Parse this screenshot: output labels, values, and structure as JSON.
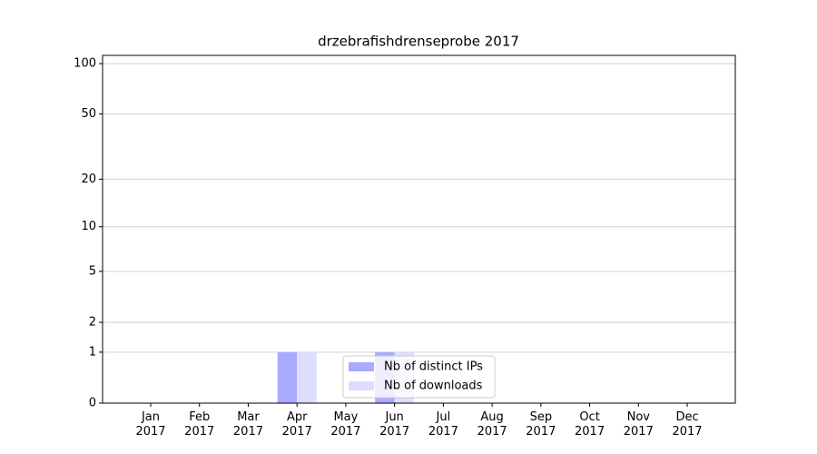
{
  "chart_data": {
    "type": "bar",
    "title": "drzebrafishdrenseprobe 2017",
    "categories": [
      "Jan 2017",
      "Feb 2017",
      "Mar 2017",
      "Apr 2017",
      "May 2017",
      "Jun 2017",
      "Jul 2017",
      "Aug 2017",
      "Sep 2017",
      "Oct 2017",
      "Nov 2017",
      "Dec 2017"
    ],
    "series": [
      {
        "name": "Nb of distinct IPs",
        "color": "#aaaaff",
        "values": [
          0,
          0,
          0,
          1,
          0,
          1,
          0,
          0,
          0,
          0,
          0,
          0
        ]
      },
      {
        "name": "Nb of downloads",
        "color": "#ddddff",
        "values": [
          0,
          0,
          0,
          1,
          0,
          1,
          0,
          0,
          0,
          0,
          0,
          0
        ]
      }
    ],
    "yscale": "log1p",
    "ylim": [
      0,
      112
    ],
    "yticks": [
      0,
      1,
      2,
      5,
      10,
      20,
      50,
      100
    ],
    "grid": true,
    "legend": "lower center"
  }
}
